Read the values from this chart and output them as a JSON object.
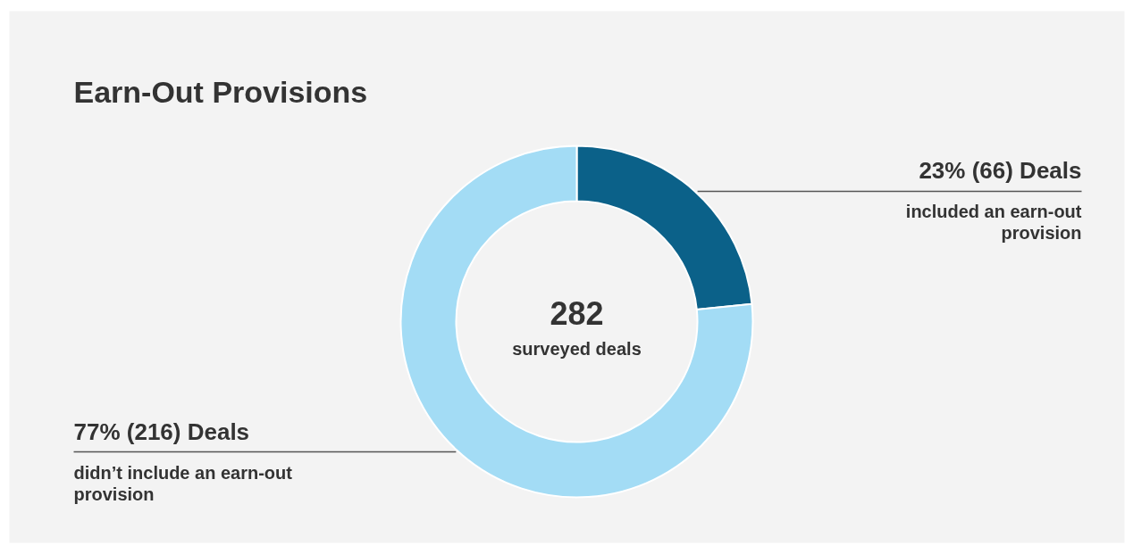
{
  "chart_data": {
    "type": "donut",
    "title": "Earn-Out Provisions",
    "categories": [
      "included an earn-out provision",
      "didn’t include an earn-out provision"
    ],
    "values": [
      66,
      216
    ],
    "colors": [
      "#0b6189",
      "#a3dcf5"
    ],
    "value_labels": [
      "23% (66) Deals",
      "77% (216) Deals"
    ],
    "annotations": [
      "282",
      "surveyed deals"
    ],
    "legend": false
  }
}
